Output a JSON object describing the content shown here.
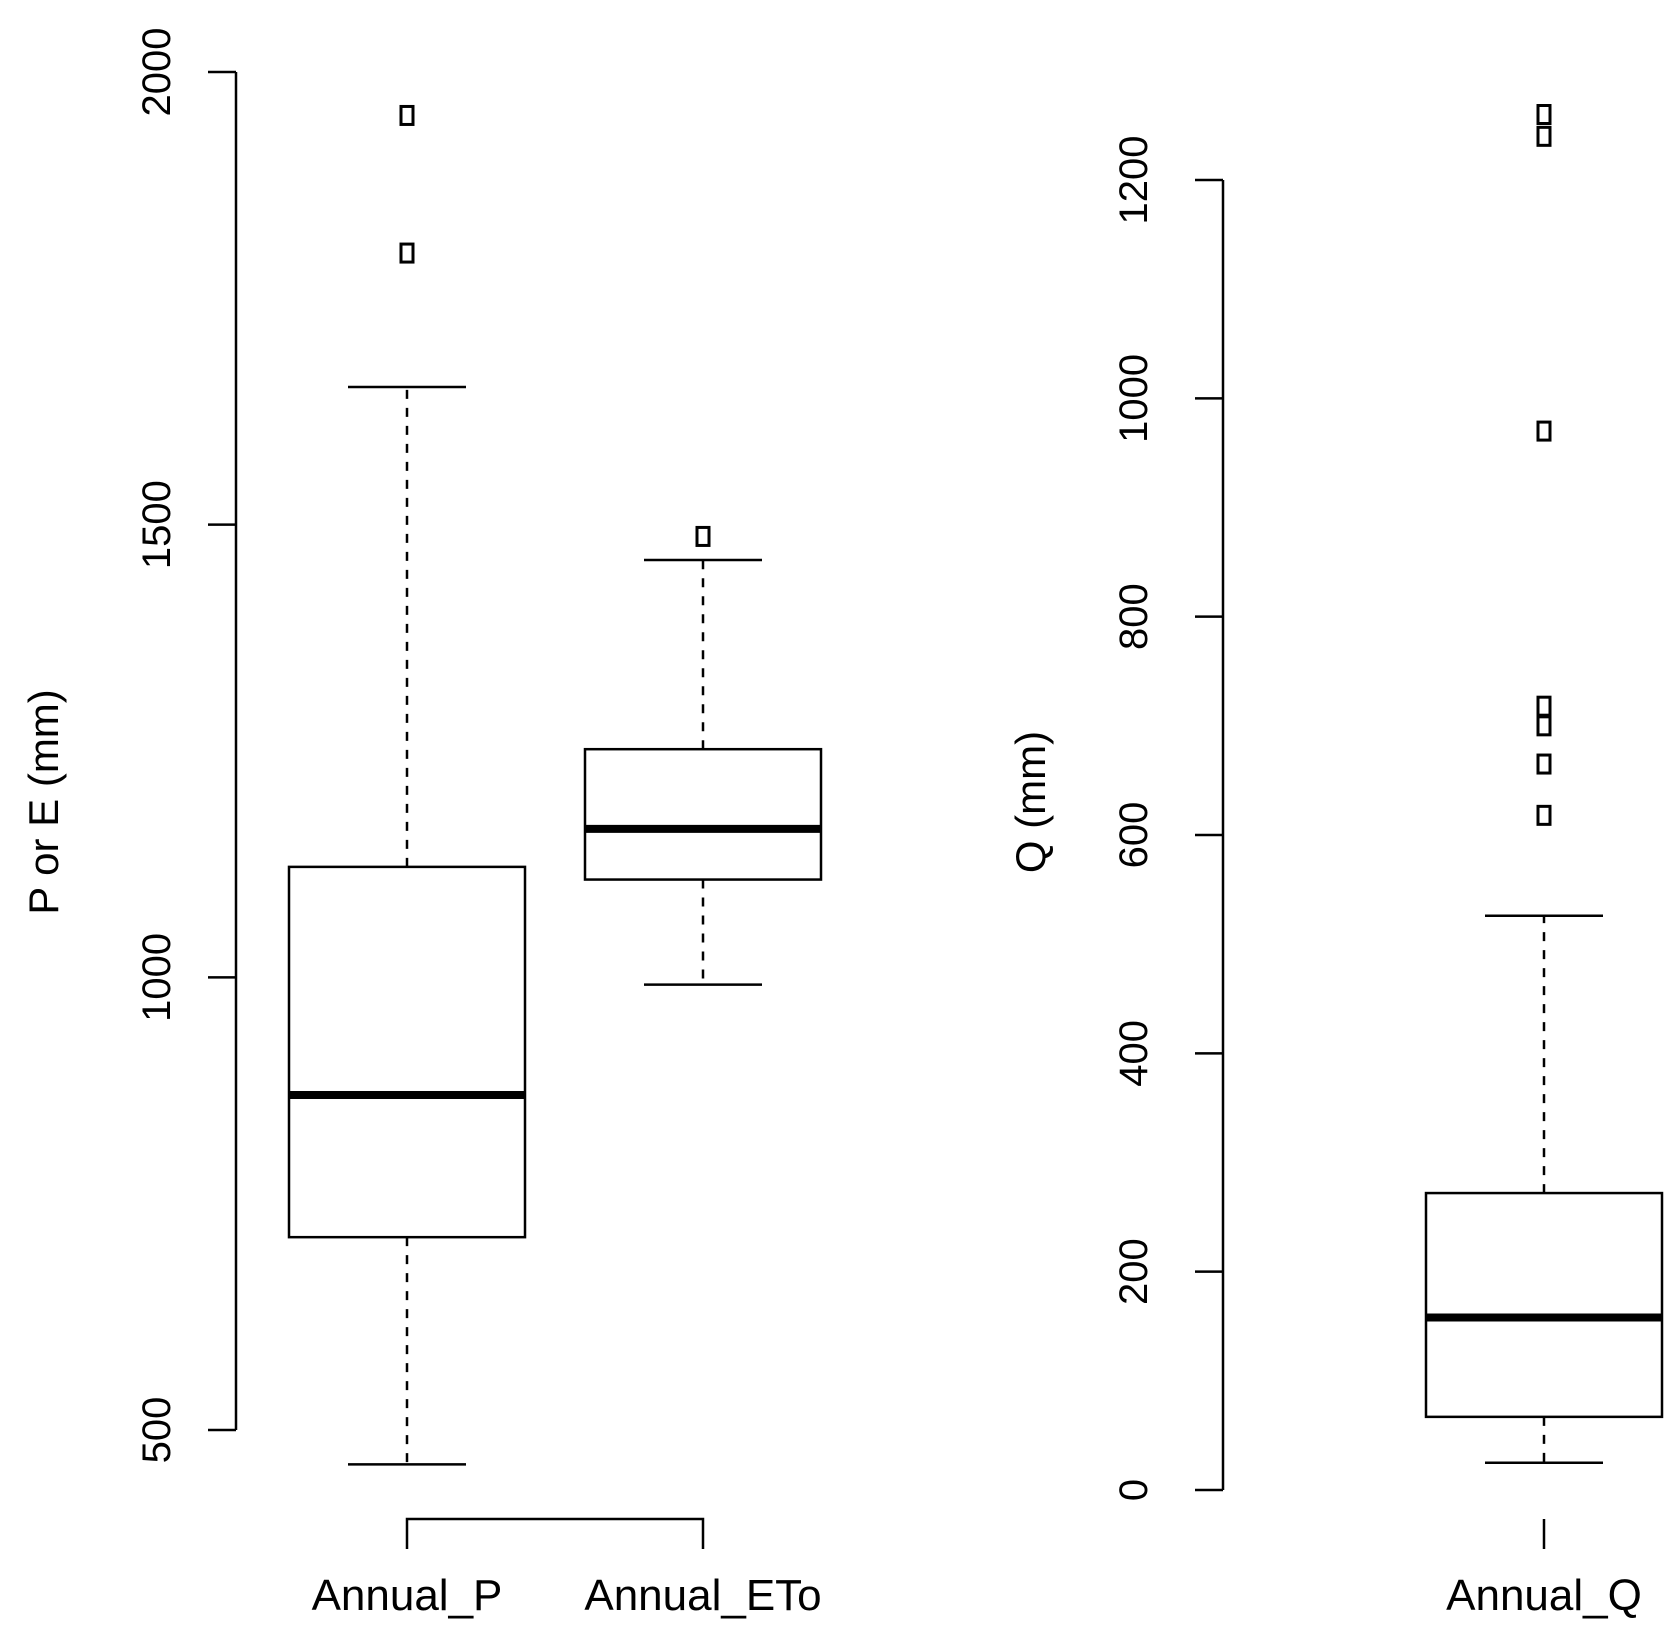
{
  "chart_data": [
    {
      "type": "boxplot",
      "ylabel": "P or E (mm)",
      "ylim": [
        500,
        2000
      ],
      "yticks": [
        500,
        1000,
        1500,
        2000
      ],
      "series": [
        {
          "name": "Annual_P",
          "min": 462,
          "q1": 713,
          "median": 870,
          "q3": 1122,
          "max": 1652,
          "outliers": [
            1800,
            1952
          ]
        },
        {
          "name": "Annual_ETo",
          "min": 992,
          "q1": 1108,
          "median": 1164,
          "q3": 1252,
          "max": 1461,
          "outliers": [
            1487
          ]
        }
      ]
    },
    {
      "type": "boxplot",
      "ylabel": "Q (mm)",
      "ylim": [
        0,
        1200
      ],
      "yticks": [
        0,
        200,
        400,
        600,
        800,
        1000,
        1200
      ],
      "series": [
        {
          "name": "Annual_Q",
          "min": 25,
          "q1": 67,
          "median": 158,
          "q3": 272,
          "max": 526,
          "outliers": [
            618,
            665,
            700,
            718,
            970,
            1240,
            1260
          ]
        }
      ]
    }
  ]
}
